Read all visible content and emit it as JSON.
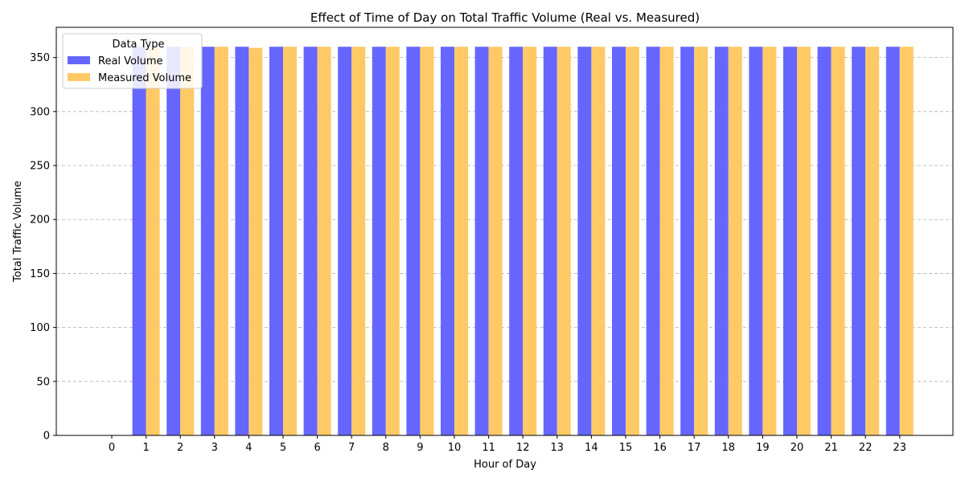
{
  "chart_data": {
    "type": "bar",
    "title": "Effect of Time of Day on Total Traffic Volume (Real vs. Measured)",
    "xlabel": "Hour of Day",
    "ylabel": "Total Traffic Volume",
    "categories": [
      "0",
      "1",
      "2",
      "3",
      "4",
      "5",
      "6",
      "7",
      "8",
      "9",
      "10",
      "11",
      "12",
      "13",
      "14",
      "15",
      "16",
      "17",
      "18",
      "19",
      "20",
      "21",
      "22",
      "23"
    ],
    "ylim": [
      0,
      378
    ],
    "yticks": [
      0,
      50,
      100,
      150,
      200,
      250,
      300,
      350
    ],
    "grid": "y-dashed",
    "legend": {
      "title": "Data Type",
      "placement": "top-left"
    },
    "series": [
      {
        "name": "Real Volume",
        "color": "#6666ff",
        "values": [
          0,
          360,
          360,
          360,
          360,
          360,
          360,
          360,
          360,
          360,
          360,
          360,
          360,
          360,
          360,
          360,
          360,
          360,
          360,
          360,
          360,
          360,
          360,
          360
        ]
      },
      {
        "name": "Measured Volume",
        "color": "#ffc966",
        "values": [
          0,
          360,
          360,
          360,
          359,
          360,
          360,
          360,
          360,
          360,
          360,
          360,
          360,
          360,
          360,
          360,
          360,
          360,
          360,
          360,
          360,
          360,
          360,
          360
        ]
      }
    ]
  }
}
